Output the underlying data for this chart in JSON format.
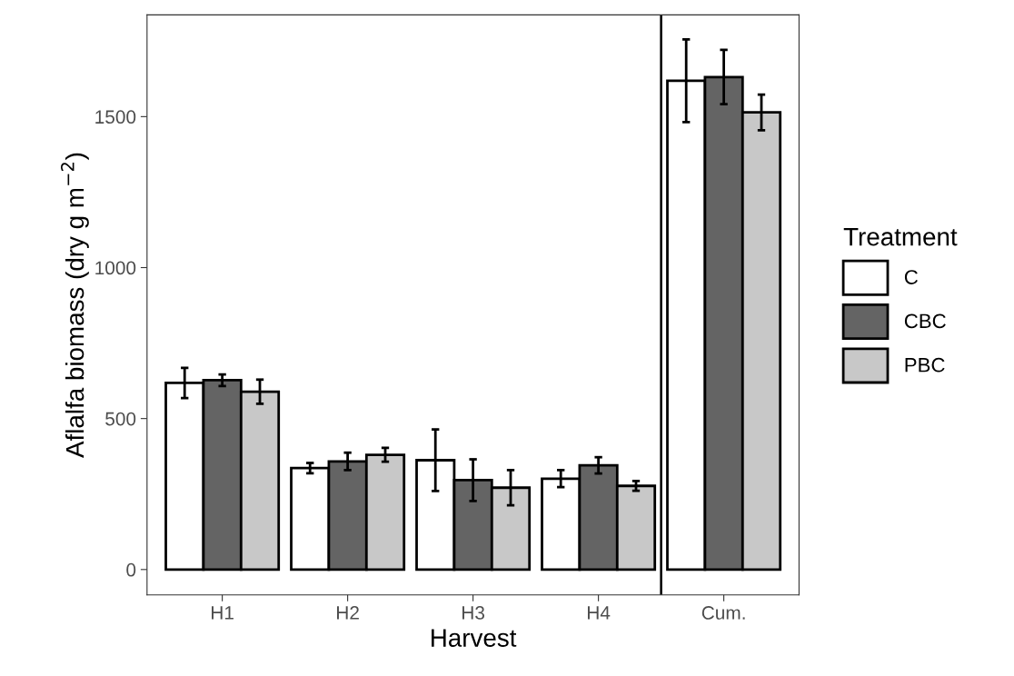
{
  "chart_data": {
    "type": "bar",
    "xlabel": "Harvest",
    "ylabel": "Aflalfa biomass (dry g m$^{−2}$)",
    "legend_title": "Treatment",
    "categories": [
      "H1",
      "H2",
      "H3",
      "H4",
      "Cum."
    ],
    "series": [
      {
        "name": "C",
        "color": "#ffffff",
        "values": [
          618,
          336,
          362,
          301,
          1619
        ],
        "errors": [
          50,
          17,
          102,
          28,
          137
        ]
      },
      {
        "name": "CBC",
        "color": "#646464",
        "values": [
          627,
          358,
          296,
          345,
          1631
        ],
        "errors": [
          19,
          29,
          69,
          27,
          90
        ]
      },
      {
        "name": "PBC",
        "color": "#c8c8c8",
        "values": [
          589,
          380,
          271,
          277,
          1514
        ],
        "errors": [
          40,
          23,
          58,
          16,
          59
        ]
      }
    ],
    "ylim": [
      -84,
      1837
    ],
    "yticks": [
      0,
      500,
      1000,
      1500
    ],
    "grid": false,
    "legend": "right"
  }
}
